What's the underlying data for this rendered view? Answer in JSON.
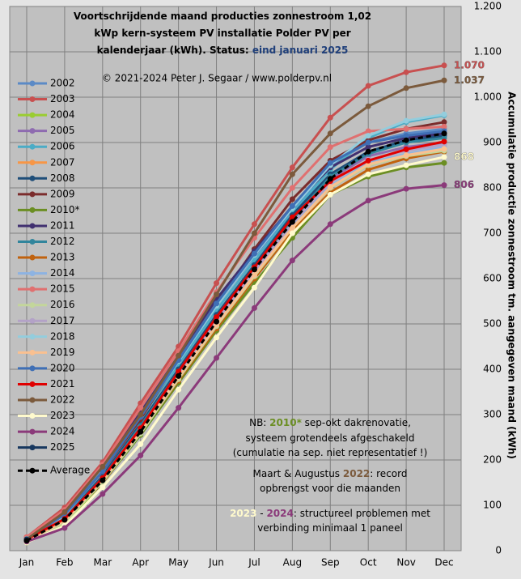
{
  "chart_data": {
    "type": "line",
    "title_lines": [
      "Voortschrijdende maand producties zonnestroom 1,02",
      "kWp kern-systeem PV installatie Polder PV per",
      "kalenderjaar (kWh). Status:"
    ],
    "status": "eind januari 2025",
    "status_color": "#1f3f7a",
    "subtitle": "© 2021-2024 Peter J. Segaar / www.polderpv.nl",
    "y_label": "Accumulatie productie zonnestroom tm. aangegeven maand (kWh)",
    "categories": [
      "Jan",
      "Feb",
      "Mar",
      "Apr",
      "May",
      "Jun",
      "Jul",
      "Aug",
      "Sep",
      "Oct",
      "Nov",
      "Dec"
    ],
    "ylim": [
      0,
      1200
    ],
    "yticks": [
      0,
      100,
      200,
      300,
      400,
      500,
      600,
      700,
      800,
      900,
      {
        "value": 1000,
        "label": "1.000"
      },
      {
        "value": 1100,
        "label": "1.100"
      },
      {
        "value": 1200,
        "label": "1.200"
      }
    ],
    "grid": true,
    "series": [
      {
        "name": "2002",
        "color": "#5b8ac6",
        "values": [
          25,
          80,
          180,
          300,
          420,
          540,
          650,
          750,
          850,
          900,
          920,
          930
        ]
      },
      {
        "name": "2003",
        "color": "#c85050",
        "values": [
          30,
          95,
          195,
          325,
          450,
          590,
          720,
          845,
          955,
          1025,
          1055,
          1070
        ],
        "value_labels": [
          null,
          null,
          null,
          null,
          null,
          null,
          null,
          null,
          null,
          null,
          null,
          "1.070"
        ]
      },
      {
        "name": "2004",
        "color": "#9acd32",
        "values": [
          18,
          60,
          150,
          260,
          380,
          500,
          620,
          720,
          800,
          850,
          870,
          880
        ]
      },
      {
        "name": "2005",
        "color": "#8e6bb0",
        "values": [
          22,
          70,
          160,
          270,
          390,
          510,
          620,
          730,
          820,
          870,
          890,
          900
        ]
      },
      {
        "name": "2006",
        "color": "#4bacc6",
        "values": [
          25,
          75,
          175,
          290,
          410,
          530,
          640,
          745,
          840,
          910,
          945,
          960
        ]
      },
      {
        "name": "2007",
        "color": "#f79646",
        "values": [
          20,
          65,
          155,
          265,
          385,
          500,
          610,
          710,
          800,
          850,
          870,
          885
        ]
      },
      {
        "name": "2008",
        "color": "#1f4e79",
        "values": [
          22,
          70,
          165,
          280,
          400,
          520,
          630,
          740,
          830,
          880,
          905,
          915
        ]
      },
      {
        "name": "2009",
        "color": "#7b2c2c",
        "values": [
          25,
          80,
          175,
          290,
          420,
          545,
          665,
          775,
          860,
          905,
          930,
          945
        ]
      },
      {
        "name": "2010*",
        "color": "#6b8e23",
        "values": [
          20,
          65,
          150,
          255,
          370,
          485,
          590,
          690,
          785,
          825,
          845,
          855
        ]
      },
      {
        "name": "2011",
        "color": "#403070",
        "values": [
          28,
          85,
          185,
          305,
          430,
          555,
          660,
          760,
          845,
          890,
          910,
          920
        ]
      },
      {
        "name": "2012",
        "color": "#31859c",
        "values": [
          22,
          70,
          160,
          275,
          395,
          515,
          625,
          730,
          825,
          875,
          900,
          910
        ]
      },
      {
        "name": "2013",
        "color": "#c0620e",
        "values": [
          20,
          65,
          150,
          260,
          375,
          490,
          600,
          705,
          790,
          840,
          865,
          880
        ]
      },
      {
        "name": "2014",
        "color": "#8db3e2",
        "values": [
          22,
          70,
          160,
          270,
          385,
          505,
          610,
          715,
          805,
          855,
          875,
          890
        ]
      },
      {
        "name": "2015",
        "color": "#e07070",
        "values": [
          30,
          90,
          190,
          315,
          440,
          570,
          690,
          800,
          890,
          925,
          930,
          935
        ]
      },
      {
        "name": "2016",
        "color": "#c3d69b",
        "values": [
          20,
          62,
          152,
          258,
          378,
          495,
          605,
          712,
          800,
          850,
          870,
          882
        ]
      },
      {
        "name": "2017",
        "color": "#b3a2c7",
        "values": [
          22,
          68,
          158,
          268,
          388,
          508,
          615,
          722,
          812,
          862,
          882,
          895
        ]
      },
      {
        "name": "2018",
        "color": "#93cddd",
        "values": [
          26,
          78,
          178,
          295,
          418,
          540,
          652,
          755,
          850,
          915,
          948,
          962
        ]
      },
      {
        "name": "2019",
        "color": "#fac090",
        "values": [
          21,
          66,
          156,
          262,
          382,
          498,
          608,
          712,
          802,
          852,
          872,
          886
        ]
      },
      {
        "name": "2020",
        "color": "#3f6fb5",
        "values": [
          25,
          80,
          175,
          295,
          420,
          545,
          655,
          760,
          855,
          900,
          915,
          925
        ]
      },
      {
        "name": "2021",
        "color": "#e00000",
        "values": [
          25,
          70,
          160,
          270,
          395,
          515,
          625,
          735,
          815,
          860,
          885,
          902
        ]
      },
      {
        "name": "2022",
        "color": "#7b5a3c",
        "values": [
          25,
          85,
          185,
          300,
          430,
          565,
          700,
          830,
          920,
          980,
          1020,
          1037
        ],
        "value_labels": [
          null,
          null,
          null,
          null,
          null,
          null,
          null,
          null,
          null,
          null,
          null,
          "1.037"
        ]
      },
      {
        "name": "2023",
        "color": "#fffacd",
        "values": [
          18,
          55,
          140,
          235,
          355,
          470,
          580,
          700,
          785,
          830,
          850,
          868
        ],
        "value_labels": [
          null,
          null,
          null,
          null,
          null,
          null,
          null,
          null,
          null,
          null,
          null,
          "868"
        ]
      },
      {
        "name": "2024",
        "color": "#8b3a7a",
        "values": [
          20,
          50,
          125,
          210,
          315,
          425,
          535,
          640,
          720,
          772,
          798,
          806
        ],
        "value_labels": [
          null,
          null,
          null,
          null,
          null,
          null,
          null,
          null,
          null,
          null,
          null,
          "806"
        ]
      },
      {
        "name": "2025",
        "color": "#17375e",
        "values": [
          25,
          null,
          null,
          null,
          null,
          null,
          null,
          null,
          null,
          null,
          null,
          null
        ]
      },
      {
        "name": "Average",
        "color": "#000000",
        "dashed": true,
        "values": [
          22,
          68,
          155,
          262,
          385,
          505,
          620,
          725,
          820,
          880,
          905,
          920
        ]
      }
    ],
    "notes": [
      [
        {
          "text": "NB: ",
          "color": "#000000"
        },
        {
          "text": "2010*",
          "color": "#6b8e23"
        },
        {
          "text": " sep-okt dakrenovatie,",
          "color": "#000000"
        }
      ],
      [
        {
          "text": "systeem grotendeels afgeschakeld",
          "color": "#000000"
        }
      ],
      [
        {
          "text": "(cumulatie na sep. niet representatief !)",
          "color": "#000000"
        }
      ],
      [
        {
          "text": "Maart & Augustus ",
          "color": "#000000"
        },
        {
          "text": "2022",
          "color": "#7b5a3c"
        },
        {
          "text": ": record",
          "color": "#000000"
        }
      ],
      [
        {
          "text": "opbrengst voor die maanden",
          "color": "#000000"
        }
      ],
      [
        {
          "text": "2023",
          "color": "#fffacd"
        },
        {
          "text": " - ",
          "color": "#000000"
        },
        {
          "text": "2024",
          "color": "#8b3a7a"
        },
        {
          "text": ": structureel problemen met",
          "color": "#000000"
        }
      ],
      [
        {
          "text": "verbinding minimaal 1 paneel",
          "color": "#000000"
        }
      ]
    ]
  }
}
